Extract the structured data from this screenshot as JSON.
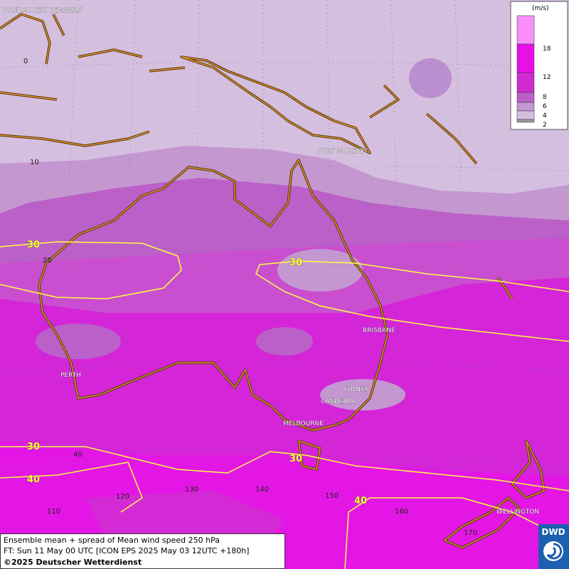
{
  "map": {
    "cities": [
      "BANDAR SERI BEGAWAN",
      "PORT MORESBY",
      "BRISBANE",
      "SYDNEY",
      "CANBERRA",
      "MELBOURNE",
      "PERTH",
      "WELLINGTON"
    ],
    "latitude_labels": [
      "0",
      "10",
      "20",
      "40"
    ],
    "longitude_labels": [
      "110",
      "120",
      "130",
      "140",
      "150",
      "160",
      "170"
    ],
    "contour_labels": [
      "30",
      "30",
      "30",
      "30",
      "40",
      "40"
    ]
  },
  "legend": {
    "unit": "(m/s)",
    "ticks": [
      "18",
      "12",
      "8",
      "6",
      "4",
      "2"
    ]
  },
  "footer": {
    "line1": "Ensemble mean + spread of Mean wind speed 250 hPa",
    "line2": "FT: Sun 11 May 00 UTC [ICON EPS 2025 May 03 12UTC +180h]",
    "line3": "©2025 Deutscher Wetterdienst"
  },
  "logo": "DWD"
}
